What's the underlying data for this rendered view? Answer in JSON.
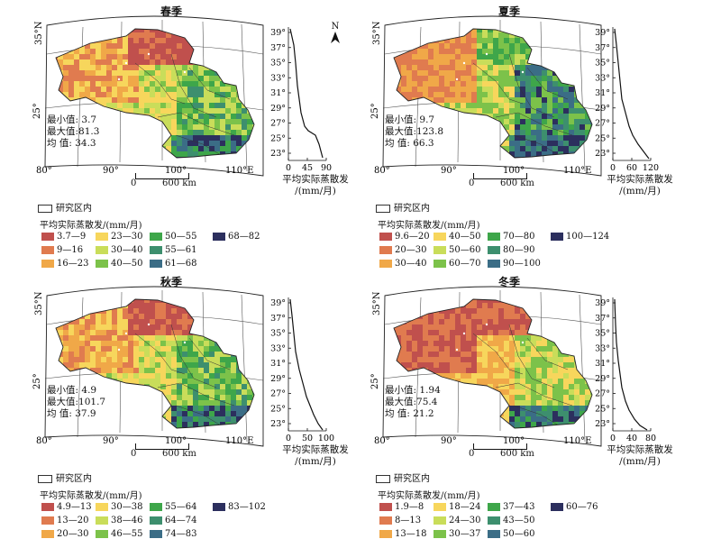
{
  "profile_axis": {
    "y_ticks": [
      "39°",
      "37°",
      "35°",
      "33°",
      "31°",
      "29°",
      "27°",
      "25°",
      "23°"
    ]
  },
  "north_arrow": "N",
  "lat_labels": [
    "35°N",
    "25°"
  ],
  "lon_labels": [
    "80°",
    "90°",
    "100°",
    "110°E"
  ],
  "profile_label": [
    "平均实际蒸散发",
    "/(mm/月)"
  ],
  "legend_inside": "研究区内",
  "legend_title": "平均实际蒸散发/(mm/月)",
  "stat_labels": {
    "min": "最小值:",
    "max": "最大值:",
    "mean": "均  值:"
  },
  "scale": {
    "zero": "0",
    "dist": "600 km"
  },
  "panels": [
    {
      "title": "春季",
      "stats": {
        "min": "3.7",
        "max": "81.3",
        "mean": "34.3"
      },
      "profile_x_ticks": [
        "0",
        "45",
        "90"
      ],
      "profile_max": 90,
      "legend": [
        {
          "label": "3.7—9",
          "color": "#c0504d"
        },
        {
          "label": "9—16",
          "color": "#e07b4f"
        },
        {
          "label": "16—23",
          "color": "#f0a848"
        },
        {
          "label": "23—30",
          "color": "#f7d65c"
        },
        {
          "label": "30—40",
          "color": "#c9dd5a"
        },
        {
          "label": "40—50",
          "color": "#7cc24a"
        },
        {
          "label": "50—55",
          "color": "#3ea64a"
        },
        {
          "label": "55—61",
          "color": "#3d8f6e"
        },
        {
          "label": "61—68",
          "color": "#3b6d86"
        },
        {
          "label": "68—82",
          "color": "#2c2f5e"
        }
      ]
    },
    {
      "title": "夏季",
      "stats": {
        "min": "9.7",
        "max": "123.8",
        "mean": "66.3"
      },
      "profile_x_ticks": [
        "0",
        "60",
        "120"
      ],
      "profile_max": 120,
      "legend": [
        {
          "label": "9.6—20",
          "color": "#c0504d"
        },
        {
          "label": "20—30",
          "color": "#e07b4f"
        },
        {
          "label": "30—40",
          "color": "#f0a848"
        },
        {
          "label": "40—50",
          "color": "#f7d65c"
        },
        {
          "label": "50—60",
          "color": "#c9dd5a"
        },
        {
          "label": "60—70",
          "color": "#7cc24a"
        },
        {
          "label": "70—80",
          "color": "#3ea64a"
        },
        {
          "label": "80—90",
          "color": "#3d8f6e"
        },
        {
          "label": "90—100",
          "color": "#3b6d86"
        },
        {
          "label": "100—124",
          "color": "#2c2f5e"
        }
      ]
    },
    {
      "title": "秋季",
      "stats": {
        "min": "4.9",
        "max": "101.7",
        "mean": "37.9"
      },
      "profile_x_ticks": [
        "0",
        "50",
        "100"
      ],
      "profile_max": 100,
      "legend": [
        {
          "label": "4.9—13",
          "color": "#c0504d"
        },
        {
          "label": "13—20",
          "color": "#e07b4f"
        },
        {
          "label": "20—30",
          "color": "#f0a848"
        },
        {
          "label": "30—38",
          "color": "#f7d65c"
        },
        {
          "label": "38—46",
          "color": "#c9dd5a"
        },
        {
          "label": "46—55",
          "color": "#7cc24a"
        },
        {
          "label": "55—64",
          "color": "#3ea64a"
        },
        {
          "label": "64—74",
          "color": "#3d8f6e"
        },
        {
          "label": "74—83",
          "color": "#3b6d86"
        },
        {
          "label": "83—102",
          "color": "#2c2f5e"
        }
      ]
    },
    {
      "title": "冬季",
      "stats": {
        "min": "1.94",
        "max": "75.4",
        "mean": "21.2"
      },
      "profile_x_ticks": [
        "0",
        "40",
        "80"
      ],
      "profile_max": 80,
      "legend": [
        {
          "label": "1.9—8",
          "color": "#c0504d"
        },
        {
          "label": "8—13",
          "color": "#e07b4f"
        },
        {
          "label": "13—18",
          "color": "#f0a848"
        },
        {
          "label": "18—24",
          "color": "#f7d65c"
        },
        {
          "label": "24—30",
          "color": "#c9dd5a"
        },
        {
          "label": "30—37",
          "color": "#7cc24a"
        },
        {
          "label": "37—43",
          "color": "#3ea64a"
        },
        {
          "label": "43—50",
          "color": "#3d8f6e"
        },
        {
          "label": "50—60",
          "color": "#3b6d86"
        },
        {
          "label": "60—76",
          "color": "#2c2f5e"
        }
      ]
    }
  ]
}
